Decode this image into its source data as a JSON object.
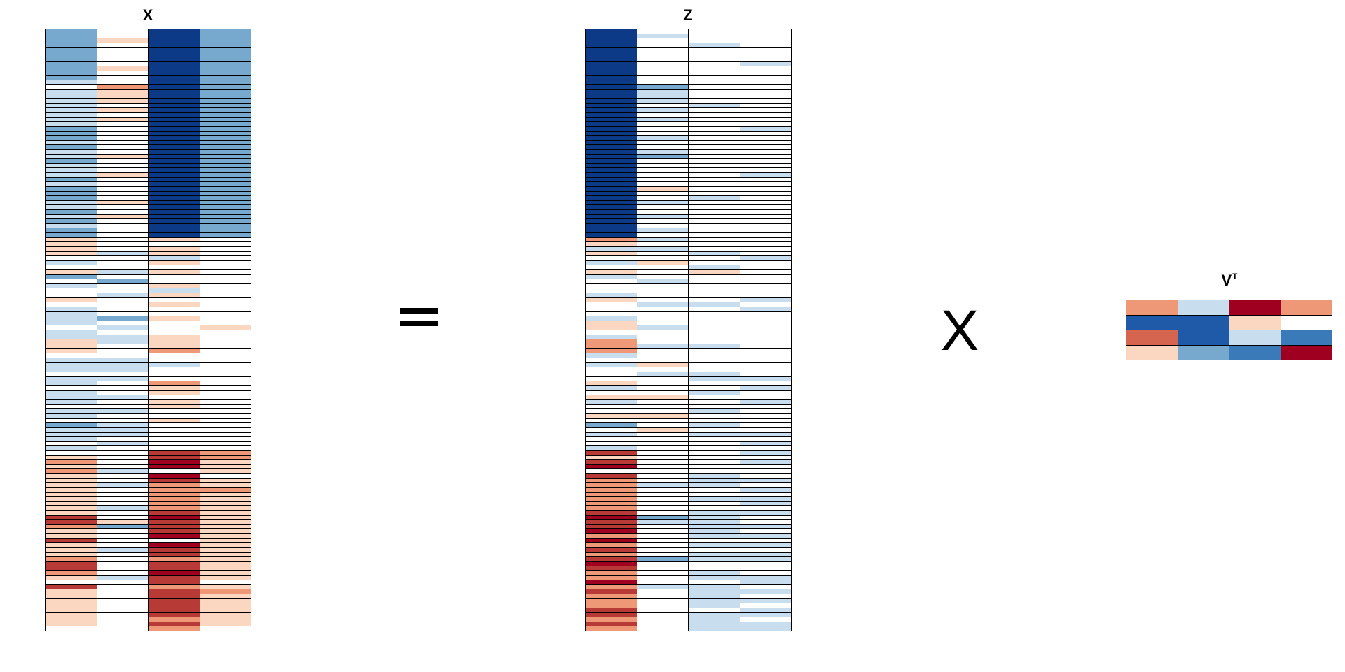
{
  "title_x": "X",
  "title_z": "Z",
  "title_vt": "V",
  "title_vt_sup": "T",
  "operator_equals": "=",
  "operator_times": "X",
  "colors": {
    "-3": "#0c3a86",
    "-2": "#1f5aa8",
    "-1.5": "#3a7ab8",
    "-1": "#76a9cd",
    "-0.5": "#c8dded",
    "0": "#ffffff",
    "0.5": "#fbd6c1",
    "0.75": "#f3b395",
    "1": "#ee9878",
    "1.5": "#d6654f",
    "2": "#b83a36",
    "3": "#a0001f"
  },
  "matrix_x": [
    [
      -1,
      0,
      -3,
      -1
    ],
    [
      -1,
      0,
      -3,
      -1
    ],
    [
      -1,
      0.5,
      -3,
      -1
    ],
    [
      -1,
      0,
      -3,
      -1
    ],
    [
      -1,
      0,
      -3,
      -1
    ],
    [
      -1,
      0,
      -3,
      -1
    ],
    [
      -1,
      0,
      -3,
      -1
    ],
    [
      -1,
      0,
      -3,
      -1
    ],
    [
      -1,
      0.5,
      -3,
      -1
    ],
    [
      -1,
      0,
      -3,
      -1
    ],
    [
      -1,
      0,
      -3,
      -1
    ],
    [
      -0.5,
      0,
      -3,
      -1
    ],
    [
      0,
      1,
      -3,
      -1
    ],
    [
      -0.5,
      0.5,
      -3,
      -1
    ],
    [
      -0.5,
      0.5,
      -3,
      -1
    ],
    [
      -0.5,
      0.5,
      -3,
      -1
    ],
    [
      -0.5,
      0,
      -3,
      -1
    ],
    [
      -0.5,
      0.5,
      -3,
      -1
    ],
    [
      -0.5,
      0,
      -3,
      -1
    ],
    [
      -0.5,
      0.5,
      -3,
      -1
    ],
    [
      -0.5,
      0,
      -3,
      -1
    ],
    [
      -1,
      0,
      -3,
      -1
    ],
    [
      -1,
      0,
      -3,
      -1
    ],
    [
      -1,
      0,
      -3,
      -1
    ],
    [
      -0.5,
      0,
      -3,
      -1
    ],
    [
      -1,
      0,
      -3,
      -1
    ],
    [
      -0.5,
      0,
      -3,
      -1
    ],
    [
      -0.5,
      0.5,
      -3,
      -1
    ],
    [
      -1,
      0,
      -3,
      -1
    ],
    [
      -0.5,
      0,
      -3,
      -1
    ],
    [
      -0.5,
      0,
      -3,
      -1
    ],
    [
      -0.5,
      0.5,
      -3,
      -1
    ],
    [
      -1,
      0,
      -3,
      -1
    ],
    [
      -0.5,
      0,
      -3,
      -1
    ],
    [
      -1,
      0,
      -3,
      -1
    ],
    [
      -1,
      0,
      -3,
      -1
    ],
    [
      -1,
      0,
      -3,
      -1
    ],
    [
      -0.5,
      0.5,
      -3,
      -1
    ],
    [
      -0.5,
      0,
      -3,
      -1
    ],
    [
      -1,
      0,
      -3,
      -1
    ],
    [
      -0.5,
      0.5,
      -3,
      -1
    ],
    [
      -1,
      0,
      -3,
      -1
    ],
    [
      -0.5,
      0,
      -3,
      -1
    ],
    [
      -1,
      0,
      -3,
      -1
    ],
    [
      -1,
      0,
      -3,
      -1
    ],
    [
      0.5,
      0,
      0.5,
      0
    ],
    [
      0.5,
      0,
      0,
      0
    ],
    [
      0.5,
      0,
      0.5,
      0
    ],
    [
      0.5,
      -0.5,
      0.5,
      0
    ],
    [
      0,
      0,
      -0.5,
      0
    ],
    [
      -0.5,
      0,
      0.5,
      0
    ],
    [
      0,
      0,
      0,
      0
    ],
    [
      0.5,
      -0.5,
      0.5,
      0
    ],
    [
      -1,
      0,
      0,
      0
    ],
    [
      0,
      -1,
      0,
      0
    ],
    [
      -0.5,
      0,
      0.5,
      0
    ],
    [
      0,
      0,
      -0.5,
      0
    ],
    [
      0,
      -0.5,
      0.5,
      0
    ],
    [
      0.5,
      0,
      0,
      0
    ],
    [
      0,
      0,
      0.5,
      0
    ],
    [
      -0.5,
      0,
      0,
      0
    ],
    [
      -0.5,
      0,
      0,
      0
    ],
    [
      -0.5,
      -1,
      0.5,
      0
    ],
    [
      -0.5,
      0,
      0,
      0
    ],
    [
      0,
      -0.5,
      0,
      0.5
    ],
    [
      -0.5,
      0,
      0,
      0
    ],
    [
      -0.5,
      -0.5,
      0.5,
      0
    ],
    [
      0.5,
      -0.5,
      0.5,
      0
    ],
    [
      0.5,
      0,
      0.5,
      0
    ],
    [
      0.5,
      0,
      1,
      0
    ],
    [
      0,
      0,
      0,
      0
    ],
    [
      -0.5,
      -0.5,
      0,
      0
    ],
    [
      -0.5,
      -0.5,
      -0.5,
      0
    ],
    [
      -0.5,
      -0.5,
      0,
      0
    ],
    [
      0,
      0,
      0,
      0
    ],
    [
      -0.5,
      -0.5,
      0,
      0
    ],
    [
      -0.5,
      0,
      1,
      0
    ],
    [
      0,
      0,
      0.5,
      0
    ],
    [
      -0.5,
      0,
      0.5,
      0
    ],
    [
      -0.5,
      -0.5,
      0,
      0
    ],
    [
      -0.5,
      0,
      0.5,
      0
    ],
    [
      0,
      0,
      0.5,
      0
    ],
    [
      -0.5,
      -0.5,
      0,
      0
    ],
    [
      -0.5,
      0,
      0,
      0
    ],
    [
      0,
      0,
      0.5,
      0
    ],
    [
      -1,
      -0.5,
      0,
      0
    ],
    [
      -0.5,
      -0.5,
      0,
      0
    ],
    [
      -0.5,
      -0.5,
      0,
      0
    ],
    [
      -0.5,
      0,
      0,
      0
    ],
    [
      0,
      -0.5,
      0,
      0
    ],
    [
      -0.5,
      0,
      0,
      0
    ],
    [
      0,
      0,
      2,
      1
    ],
    [
      0.5,
      0,
      2,
      1
    ],
    [
      1,
      0,
      3,
      0.5
    ],
    [
      0.5,
      0,
      3,
      0.5
    ],
    [
      1,
      -0.5,
      0,
      0.5
    ],
    [
      0.5,
      0,
      3,
      0
    ],
    [
      0.5,
      0,
      2,
      0.5
    ],
    [
      0.5,
      -0.5,
      1,
      0.5
    ],
    [
      0.5,
      0,
      1,
      1
    ],
    [
      0.5,
      0,
      1,
      0.5
    ],
    [
      0.5,
      0,
      1,
      0.5
    ],
    [
      0.5,
      0,
      1,
      0.5
    ],
    [
      0.5,
      -0.5,
      1,
      0.5
    ],
    [
      0.5,
      0,
      2,
      0.5
    ],
    [
      2,
      0,
      3,
      0.5
    ],
    [
      2,
      0.5,
      2,
      0.5
    ],
    [
      1,
      -1,
      2,
      0.5
    ],
    [
      0.5,
      0,
      2,
      0.5
    ],
    [
      0.5,
      0,
      3,
      0.5
    ],
    [
      2,
      0,
      0,
      0.5
    ],
    [
      0.5,
      0,
      3,
      0.5
    ],
    [
      0.5,
      -0.5,
      2,
      0.5
    ],
    [
      0.5,
      0,
      2,
      0.5
    ],
    [
      1,
      0,
      1,
      0.5
    ],
    [
      2,
      0,
      2,
      0.5
    ],
    [
      2,
      0,
      2,
      0.5
    ],
    [
      1,
      0,
      3,
      0.5
    ],
    [
      0.5,
      -0.5,
      2,
      0.5
    ],
    [
      0,
      0,
      2,
      0
    ],
    [
      2,
      0,
      1,
      0.5
    ],
    [
      0.5,
      0,
      2,
      1
    ],
    [
      0.5,
      0,
      2,
      0.5
    ],
    [
      0.5,
      0,
      2,
      0.5
    ],
    [
      0.5,
      0,
      2,
      0.5
    ],
    [
      0.5,
      0,
      2,
      0.5
    ],
    [
      0.5,
      0,
      2,
      0.5
    ],
    [
      0.5,
      0,
      1,
      0.5
    ],
    [
      0.5,
      0,
      2,
      0.5
    ],
    [
      0,
      0,
      1,
      0
    ]
  ],
  "matrix_z": [
    [
      -3,
      0,
      0,
      0
    ],
    [
      -3,
      -0.5,
      0,
      0
    ],
    [
      -3,
      0,
      0,
      0
    ],
    [
      -3,
      0,
      -0.5,
      0
    ],
    [
      -3,
      0,
      0,
      0
    ],
    [
      -3,
      0,
      0,
      0
    ],
    [
      -3,
      0,
      0,
      0
    ],
    [
      -3,
      0,
      0,
      -0.5
    ],
    [
      -3,
      0,
      0,
      0
    ],
    [
      -3,
      0,
      0,
      0
    ],
    [
      -3,
      0,
      0,
      0
    ],
    [
      -3,
      0,
      0,
      0
    ],
    [
      -3,
      -1,
      0,
      0
    ],
    [
      -3,
      -0.5,
      0,
      0
    ],
    [
      -3,
      -0.5,
      0,
      0
    ],
    [
      -3,
      -0.5,
      0,
      0
    ],
    [
      -3,
      0,
      -0.5,
      0
    ],
    [
      -3,
      -0.5,
      0,
      0
    ],
    [
      -3,
      0,
      0,
      0
    ],
    [
      -3,
      -0.5,
      0,
      0
    ],
    [
      -3,
      0,
      0,
      0
    ],
    [
      -3,
      0,
      0,
      -0.5
    ],
    [
      -3,
      0,
      0,
      0
    ],
    [
      -3,
      -0.5,
      0,
      0
    ],
    [
      -3,
      0,
      0,
      0
    ],
    [
      -3,
      0,
      0,
      0
    ],
    [
      -3,
      -0.5,
      0,
      0
    ],
    [
      -3,
      -1,
      0,
      0
    ],
    [
      -3,
      0,
      0,
      0
    ],
    [
      -3,
      0,
      0,
      0
    ],
    [
      -3,
      0,
      0,
      0
    ],
    [
      -3,
      0,
      0,
      -0.5
    ],
    [
      -3,
      0,
      0,
      0
    ],
    [
      -3,
      0,
      0,
      0
    ],
    [
      -3,
      0.5,
      0,
      0
    ],
    [
      -3,
      0,
      0,
      0
    ],
    [
      -3,
      0,
      -0.5,
      0
    ],
    [
      -3,
      -0.5,
      0,
      0
    ],
    [
      -3,
      0,
      0,
      0
    ],
    [
      -3,
      0,
      0,
      0
    ],
    [
      -3,
      -0.5,
      0,
      0
    ],
    [
      -3,
      0,
      0,
      0
    ],
    [
      -3,
      0,
      0,
      0
    ],
    [
      -3,
      -0.5,
      0,
      0
    ],
    [
      -3,
      0,
      0,
      0
    ],
    [
      1,
      -0.5,
      0,
      0
    ],
    [
      0.5,
      0,
      0,
      0
    ],
    [
      -0.5,
      -0.5,
      0,
      0
    ],
    [
      0.5,
      0,
      -0.5,
      0
    ],
    [
      0,
      0,
      0,
      -0.5
    ],
    [
      -0.5,
      0.5,
      0,
      0
    ],
    [
      0,
      0,
      -0.5,
      0
    ],
    [
      0.5,
      0,
      0.5,
      0
    ],
    [
      -0.5,
      0,
      0,
      0
    ],
    [
      0,
      -0.5,
      0,
      0
    ],
    [
      0,
      0,
      0,
      0
    ],
    [
      0,
      0,
      0,
      0
    ],
    [
      -0.5,
      0,
      0,
      0
    ],
    [
      0.5,
      0,
      0,
      -0.5
    ],
    [
      0,
      -0.5,
      -0.5,
      0
    ],
    [
      0,
      0,
      0,
      -0.5
    ],
    [
      0,
      0,
      0,
      0
    ],
    [
      -0.5,
      0,
      0,
      0
    ],
    [
      0.5,
      0,
      0,
      0
    ],
    [
      0.5,
      -0.5,
      0,
      0
    ],
    [
      0,
      0,
      0,
      0
    ],
    [
      -0.5,
      0,
      0,
      0
    ],
    [
      1,
      0,
      0,
      0
    ],
    [
      1,
      -0.5,
      -0.5,
      0
    ],
    [
      1,
      0,
      0,
      0
    ],
    [
      -0.5,
      0,
      0,
      0
    ],
    [
      0,
      0,
      0,
      0
    ],
    [
      -0.5,
      0.5,
      0,
      0
    ],
    [
      0,
      0,
      0,
      0
    ],
    [
      0,
      -0.5,
      -0.5,
      0
    ],
    [
      0,
      0,
      -0.5,
      -0.5
    ],
    [
      0.5,
      0,
      0,
      0
    ],
    [
      -0.5,
      0,
      0,
      -0.5
    ],
    [
      0,
      0,
      -0.5,
      0
    ],
    [
      0.5,
      0.5,
      0,
      0
    ],
    [
      -0.5,
      0,
      0,
      -0.5
    ],
    [
      0,
      0,
      0,
      0
    ],
    [
      0,
      0,
      -0.5,
      0
    ],
    [
      0.5,
      0.5,
      0,
      0
    ],
    [
      0,
      0,
      0,
      0
    ],
    [
      -1,
      0,
      -0.5,
      0
    ],
    [
      0,
      0.5,
      0,
      0
    ],
    [
      -0.5,
      0,
      -0.5,
      -0.5
    ],
    [
      0,
      0,
      0,
      0
    ],
    [
      0,
      0,
      0,
      -0.5
    ],
    [
      -0.5,
      0,
      0,
      0
    ],
    [
      2,
      0,
      0,
      -0.5
    ],
    [
      0.5,
      0,
      0,
      0
    ],
    [
      2,
      0,
      0,
      -0.5
    ],
    [
      3,
      0,
      0,
      0
    ],
    [
      0,
      0,
      0,
      0
    ],
    [
      2,
      0,
      -0.5,
      0
    ],
    [
      1,
      0,
      -0.5,
      -0.5
    ],
    [
      1,
      -0.5,
      -0.5,
      0
    ],
    [
      1,
      0,
      0,
      -0.5
    ],
    [
      1,
      0,
      0,
      0
    ],
    [
      1,
      0,
      -0.5,
      -0.5
    ],
    [
      1,
      0,
      0,
      -0.5
    ],
    [
      1,
      0,
      0,
      0
    ],
    [
      2,
      0,
      -0.5,
      -0.5
    ],
    [
      3,
      -1,
      -0.5,
      0
    ],
    [
      2,
      -0.5,
      -0.5,
      0
    ],
    [
      2,
      0,
      -0.5,
      -0.5
    ],
    [
      3,
      0,
      -0.5,
      0
    ],
    [
      1,
      0,
      -0.5,
      -0.5
    ],
    [
      3,
      0,
      0,
      0
    ],
    [
      1,
      0,
      -0.5,
      -0.5
    ],
    [
      2,
      0,
      0,
      0
    ],
    [
      1,
      0,
      -0.5,
      -0.5
    ],
    [
      2,
      -1,
      -0.5,
      -0.5
    ],
    [
      3,
      0,
      0,
      0
    ],
    [
      2,
      0,
      0,
      0
    ],
    [
      1,
      0,
      -0.5,
      0
    ],
    [
      1,
      0,
      -0.5,
      -0.5
    ],
    [
      3,
      0,
      0,
      -0.5
    ],
    [
      1,
      -0.5,
      -0.5,
      0
    ],
    [
      2,
      0,
      -0.5,
      -0.5
    ],
    [
      1,
      0,
      -0.5,
      0
    ],
    [
      1,
      0,
      -0.5,
      -0.5
    ],
    [
      1,
      0,
      -0.5,
      0
    ],
    [
      2,
      0,
      0,
      -0.5
    ],
    [
      2,
      0,
      -0.5,
      -0.5
    ],
    [
      1,
      0,
      -0.5,
      0
    ],
    [
      2,
      0,
      -0.5,
      -0.5
    ],
    [
      1,
      0,
      -0.5,
      -0.5
    ]
  ],
  "matrix_vt": [
    [
      1,
      -0.5,
      3,
      1
    ],
    [
      -2,
      -2,
      0.5,
      0
    ],
    [
      1.5,
      -2,
      -0.5,
      -1.5
    ],
    [
      0.5,
      -1,
      -1.5,
      3
    ]
  ]
}
